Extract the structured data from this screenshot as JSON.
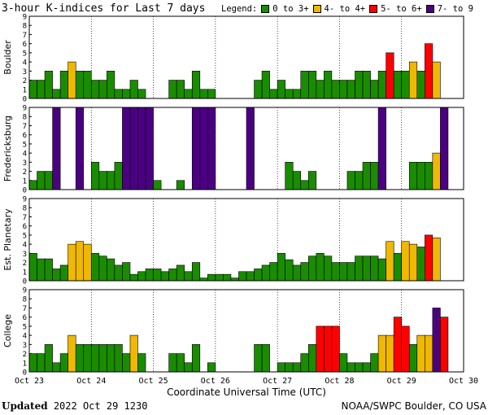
{
  "title": "3-hour K-indices for Last 7 days",
  "legend": {
    "label": "Legend:",
    "items": [
      {
        "label": "0 to 3+",
        "color": "#1a8c00"
      },
      {
        "label": "4- to 4+",
        "color": "#f0b800"
      },
      {
        "label": "5- to 6+",
        "color": "#ff0000"
      },
      {
        "label": "7- to 9",
        "color": "#4b0082"
      }
    ]
  },
  "footer": {
    "updated_label": "Updated",
    "updated_value": "2022 Oct 29 1230",
    "source": "NOAA/SWPC Boulder, CO USA"
  },
  "chart_data": {
    "type": "bar",
    "xlabel": "Coordinate Universal Time (UTC)",
    "x_ticks": [
      "Oct 23",
      "Oct 24",
      "Oct 25",
      "Oct 26",
      "Oct 27",
      "Oct 28",
      "Oct 29",
      "Oct 30"
    ],
    "y_ticks": [
      "0",
      "1",
      "2",
      "3",
      "4",
      "5",
      "6",
      "7",
      "8",
      "9"
    ],
    "ylim": [
      0,
      9
    ],
    "bars_per_day": 8,
    "color_scale": [
      {
        "min": 0,
        "max": 3.99,
        "color": "#1a8c00"
      },
      {
        "min": 4,
        "max": 4.99,
        "color": "#f0b800"
      },
      {
        "min": 5,
        "max": 6.99,
        "color": "#ff0000"
      },
      {
        "min": 7,
        "max": 9,
        "color": "#4b0082"
      }
    ],
    "panels": [
      {
        "name": "Boulder",
        "values": [
          2,
          2,
          3,
          1,
          3,
          4,
          3,
          3,
          2,
          2,
          3,
          1,
          1,
          2,
          1,
          0,
          0,
          0,
          2,
          2,
          1,
          3,
          1,
          1,
          0,
          0,
          0,
          0,
          0,
          2,
          3,
          1,
          2,
          1,
          1,
          3,
          3,
          2,
          3,
          2,
          2,
          2,
          3,
          3,
          2,
          3,
          5,
          3,
          3,
          4,
          3,
          6,
          4,
          0,
          0,
          0
        ]
      },
      {
        "name": "Fredericksburg",
        "values": [
          1,
          2,
          2,
          9,
          0,
          0,
          9,
          0,
          3,
          2,
          2,
          3,
          9,
          9,
          9,
          9,
          1,
          0,
          0,
          1,
          0,
          9,
          9,
          9,
          0,
          0,
          0,
          0,
          9,
          0,
          0,
          0,
          0,
          3,
          2,
          1,
          2,
          0,
          0,
          0,
          0,
          2,
          2,
          3,
          3,
          9,
          0,
          0,
          0,
          3,
          3,
          3,
          4,
          9,
          0,
          0
        ]
      },
      {
        "name": "Est. Planetary",
        "values": [
          3,
          2.4,
          2.4,
          1.3,
          1.7,
          4,
          4.3,
          4,
          3,
          2.7,
          2.4,
          1.7,
          2,
          0.7,
          1,
          1.3,
          1.3,
          1,
          1.3,
          1.7,
          1,
          2,
          0.3,
          0.7,
          0.7,
          0.7,
          0.3,
          1,
          1,
          1.3,
          1.7,
          2,
          3,
          2.3,
          1.7,
          2,
          2.7,
          3,
          2.7,
          2,
          2,
          2,
          2.7,
          2.7,
          2.7,
          2.4,
          4.3,
          3,
          4.3,
          4,
          3.7,
          5,
          4.7,
          0,
          0,
          0
        ]
      },
      {
        "name": "College",
        "values": [
          2,
          2,
          3,
          1,
          2,
          4,
          3,
          3,
          3,
          3,
          3,
          3,
          2,
          4,
          2,
          0,
          0,
          0,
          2,
          2,
          1,
          3,
          0,
          1,
          0,
          0,
          0,
          0,
          0,
          3,
          3,
          0,
          1,
          1,
          1,
          2,
          3,
          5,
          5,
          5,
          2,
          1,
          1,
          1,
          2,
          4,
          4,
          6,
          5,
          3,
          4,
          4,
          7,
          6,
          0,
          0
        ]
      }
    ]
  }
}
